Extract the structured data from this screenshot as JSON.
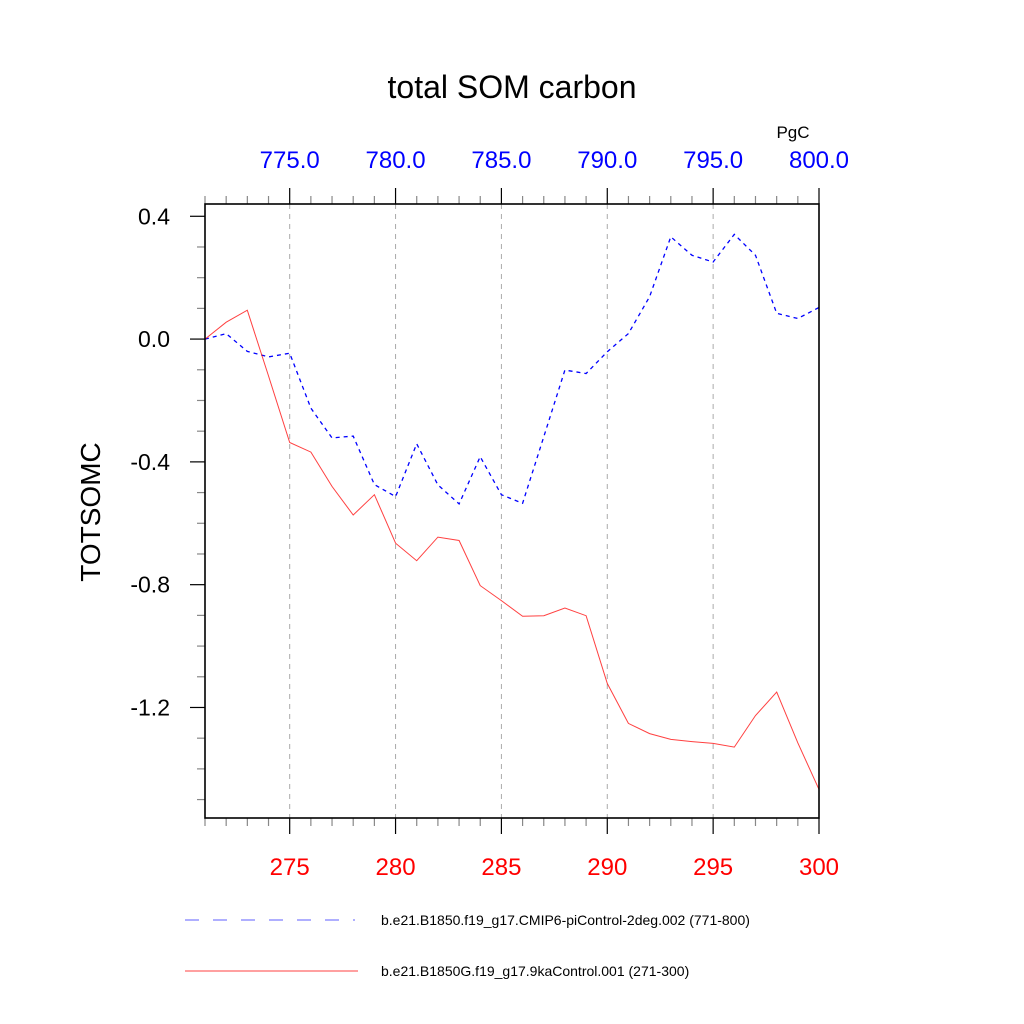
{
  "chart_data": {
    "type": "line",
    "title": "total SOM carbon",
    "ylabel": "TOTSOMC",
    "units_label": "PgC",
    "ylim": [
      -1.56,
      0.44
    ],
    "yticks": [
      0.4,
      0.0,
      -0.4,
      -0.8,
      -1.2
    ],
    "ytick_labels": [
      "0.4",
      "0.0",
      "-0.4",
      "-0.8",
      "-1.2"
    ],
    "y_minor_step": 0.1,
    "bottom_axis": {
      "range": [
        271,
        300
      ],
      "ticks": [
        275,
        280,
        285,
        290,
        295,
        300
      ],
      "tick_labels": [
        "275",
        "280",
        "285",
        "290",
        "295",
        "300"
      ],
      "color": "#ff0000"
    },
    "top_axis": {
      "range": [
        771,
        800
      ],
      "ticks": [
        775,
        780,
        785,
        790,
        795,
        800
      ],
      "tick_labels": [
        "775.0",
        "780.0",
        "785.0",
        "790.0",
        "795.0",
        "800.0"
      ],
      "color": "#0000ff"
    },
    "grid": "vertical dashed at major ticks",
    "legend_position": "bottom",
    "x": [
      271,
      272,
      273,
      274,
      275,
      276,
      277,
      278,
      279,
      280,
      281,
      282,
      283,
      284,
      285,
      286,
      287,
      288,
      289,
      290,
      291,
      292,
      293,
      294,
      295,
      296,
      297,
      298,
      299,
      300
    ],
    "series": [
      {
        "name": "b.e21.B1850.f19_g17.CMIP6-piControl-2deg.002 (771-800)",
        "axis": "top",
        "x_years": "771-800",
        "color": "#0000ff",
        "style": "dashed",
        "values": [
          0.0,
          0.018,
          -0.04,
          -0.058,
          -0.046,
          -0.225,
          -0.322,
          -0.316,
          -0.474,
          -0.513,
          -0.341,
          -0.475,
          -0.537,
          -0.383,
          -0.507,
          -0.535,
          -0.318,
          -0.101,
          -0.112,
          -0.041,
          0.018,
          0.138,
          0.333,
          0.273,
          0.251,
          0.341,
          0.273,
          0.084,
          0.067,
          0.103
        ]
      },
      {
        "name": "b.e21.B1850G.f19_g17.9kaControl.001 (271-300)",
        "axis": "bottom",
        "x_years": "271-300",
        "color": "#ff0000",
        "style": "solid",
        "values": [
          0.0,
          0.055,
          0.094,
          -0.12,
          -0.337,
          -0.368,
          -0.48,
          -0.573,
          -0.507,
          -0.665,
          -0.722,
          -0.645,
          -0.656,
          -0.803,
          -0.852,
          -0.903,
          -0.901,
          -0.876,
          -0.901,
          -1.122,
          -1.252,
          -1.285,
          -1.304,
          -1.311,
          -1.317,
          -1.329,
          -1.226,
          -1.15,
          -1.315,
          -1.467
        ]
      }
    ]
  }
}
